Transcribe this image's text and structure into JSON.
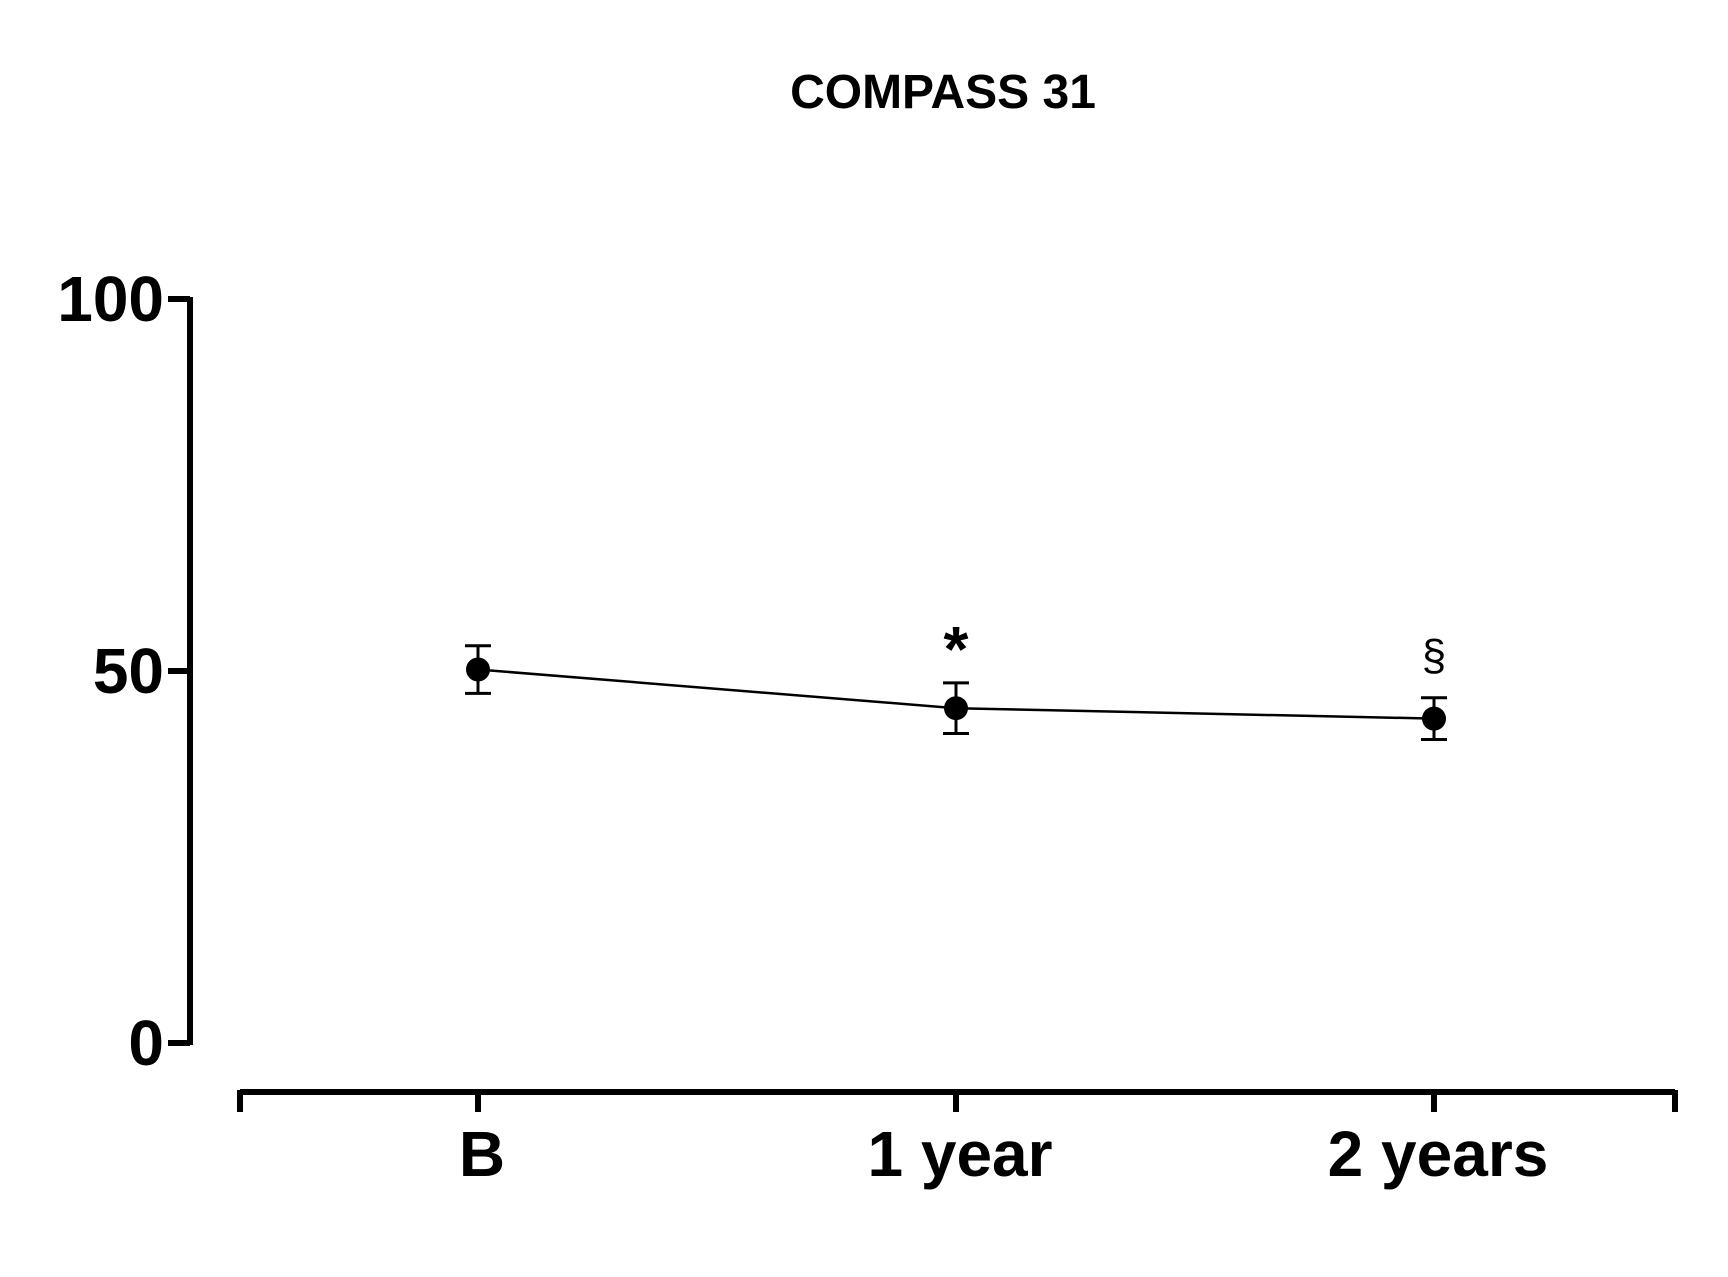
{
  "chart_data": {
    "type": "line",
    "title": "COMPASS 31",
    "xlabel": "",
    "ylabel": "",
    "categories": [
      "B",
      "1 year",
      "2 years"
    ],
    "ylim": [
      0,
      100
    ],
    "yticks": [
      0,
      50,
      100
    ],
    "series": [
      {
        "values": [
          50.2,
          45.0,
          43.6
        ],
        "error": [
          3.2,
          3.4,
          2.8
        ]
      }
    ],
    "annotations": [
      "",
      "*",
      "§"
    ],
    "grid": false,
    "colors": {
      "line": "#000000",
      "marker": "#000000"
    }
  }
}
